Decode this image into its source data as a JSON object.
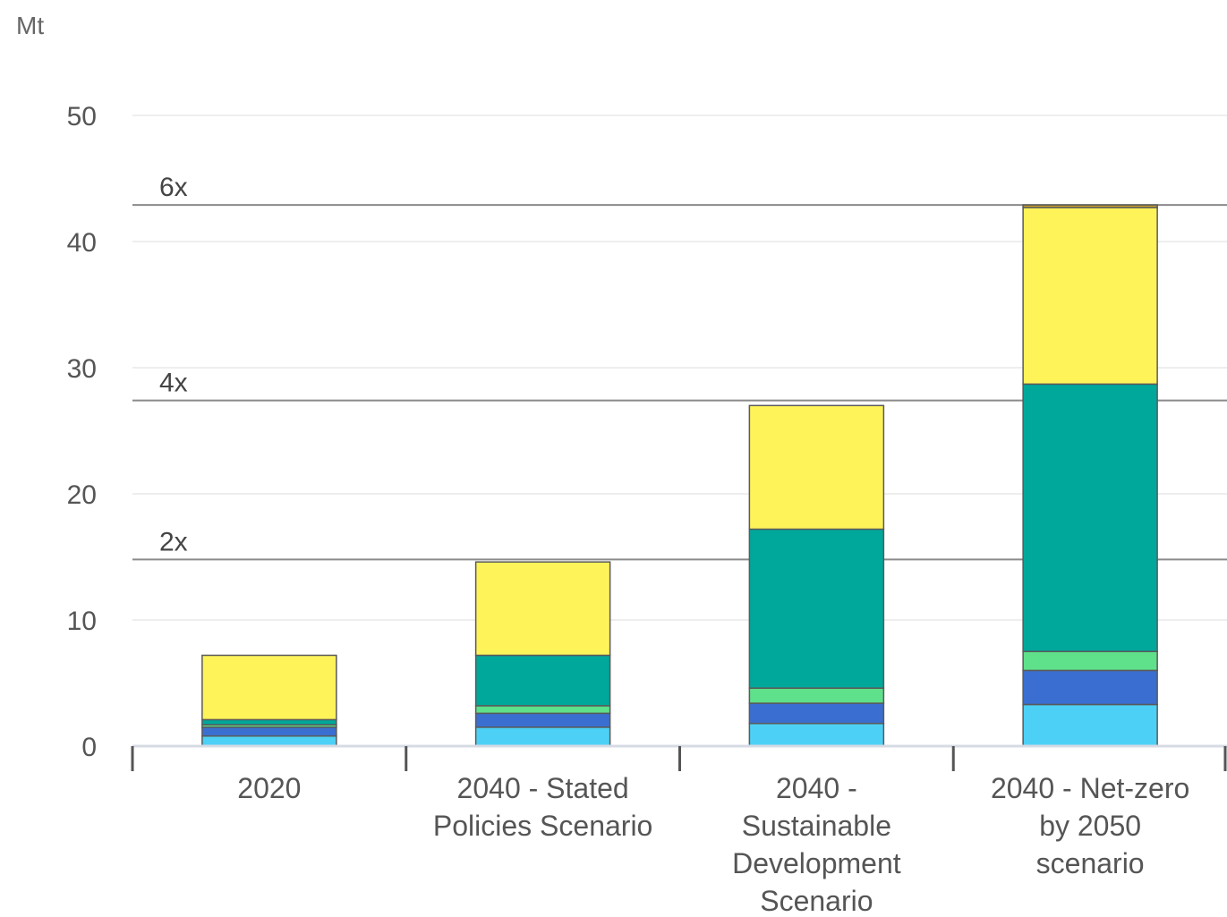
{
  "chart_data": {
    "type": "bar",
    "stacked": true,
    "unit_label": "Mt",
    "title": "",
    "xlabel": "",
    "ylabel": "",
    "ylim": [
      0,
      50
    ],
    "yticks": [
      0,
      10,
      20,
      30,
      40,
      50
    ],
    "grid": true,
    "legend": "none",
    "categories": [
      [
        "2020"
      ],
      [
        "2040 - Stated",
        "Policies Scenario"
      ],
      [
        "2040 -",
        "Sustainable",
        "Development",
        "Scenario"
      ],
      [
        "2040 - Net-zero",
        "by 2050",
        "scenario"
      ]
    ],
    "series": [
      {
        "color": "#4dd0f5",
        "values": [
          0.8,
          1.5,
          1.8,
          3.3
        ]
      },
      {
        "color": "#3a6fd1",
        "values": [
          0.7,
          1.1,
          1.6,
          2.7
        ]
      },
      {
        "color": "#5fe08a",
        "values": [
          0.2,
          0.6,
          1.2,
          1.5
        ]
      },
      {
        "color": "#00a79b",
        "values": [
          0.4,
          4.0,
          12.6,
          21.2
        ]
      },
      {
        "color": "#fff35a",
        "values": [
          5.1,
          7.4,
          9.8,
          14.0
        ]
      },
      {
        "color": "#c9a227",
        "values": [
          0,
          0,
          0,
          0.2
        ]
      }
    ],
    "reference_lines": [
      {
        "label": "2x",
        "value": 14.8
      },
      {
        "label": "4x",
        "value": 27.4
      },
      {
        "label": "6x",
        "value": 42.9
      }
    ]
  }
}
